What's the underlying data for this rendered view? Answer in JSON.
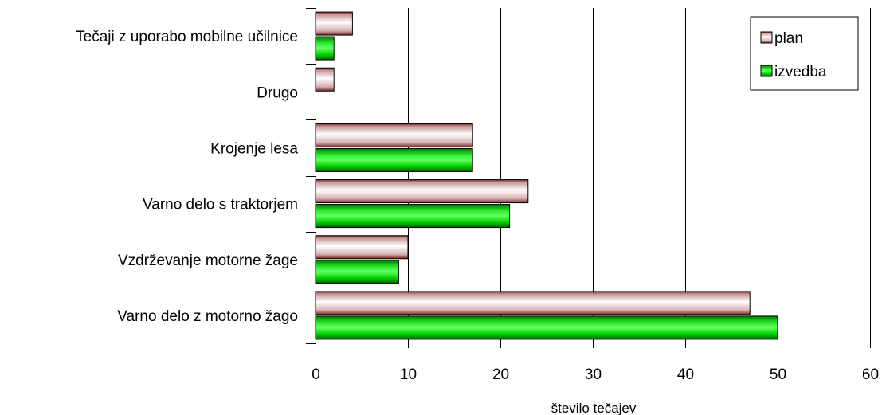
{
  "chart_data": {
    "type": "bar",
    "orientation": "horizontal",
    "categories": [
      "Tečaji z uporabo mobilne učilnice",
      "Drugo",
      "Krojenje lesa",
      "Varno delo s traktorjem",
      "Vzdrževanje motorne žage",
      "Varno delo z motorno žago"
    ],
    "series": [
      {
        "name": "plan",
        "values": [
          4,
          2,
          17,
          23,
          10,
          47
        ],
        "color": "#b57070"
      },
      {
        "name": "izvedba",
        "values": [
          2,
          0,
          17,
          21,
          9,
          50
        ],
        "color": "#00d800"
      }
    ],
    "xlabel": "število tečajev",
    "ylabel": "",
    "xlim": [
      0,
      60
    ],
    "xticks": [
      0,
      10,
      20,
      30,
      40,
      50,
      60
    ],
    "grid": "vertical",
    "legend_position": "top-right"
  }
}
